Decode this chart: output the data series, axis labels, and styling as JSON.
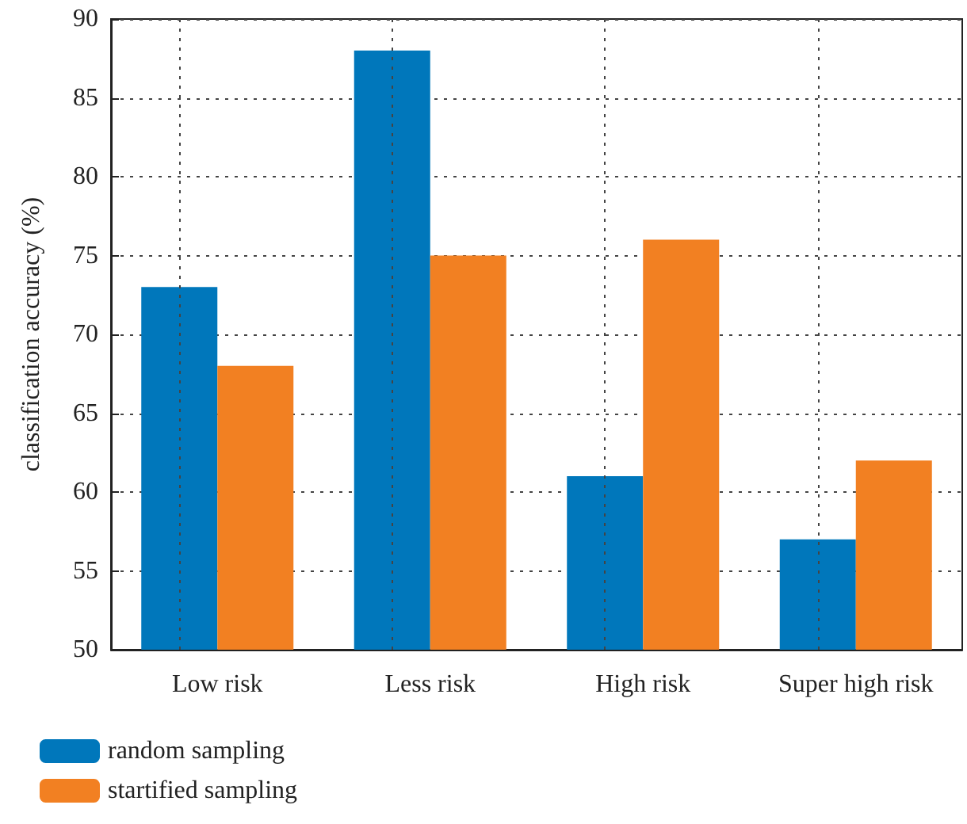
{
  "chart_data": {
    "type": "bar",
    "ylabel": "classification accuracy (%)",
    "categories": [
      "Low risk",
      "Less risk",
      "High risk",
      "Super high risk"
    ],
    "series": [
      {
        "name": "random sampling",
        "color": "#0077bb",
        "values": [
          73,
          88,
          61,
          57
        ]
      },
      {
        "name": "startified sampling",
        "color": "#f28022",
        "values": [
          68,
          75,
          76,
          62
        ]
      }
    ],
    "ylim": [
      50,
      90
    ],
    "yticks": [
      50,
      55,
      60,
      65,
      70,
      75,
      80,
      85,
      90
    ],
    "grid": true,
    "legend": "bottom left"
  }
}
